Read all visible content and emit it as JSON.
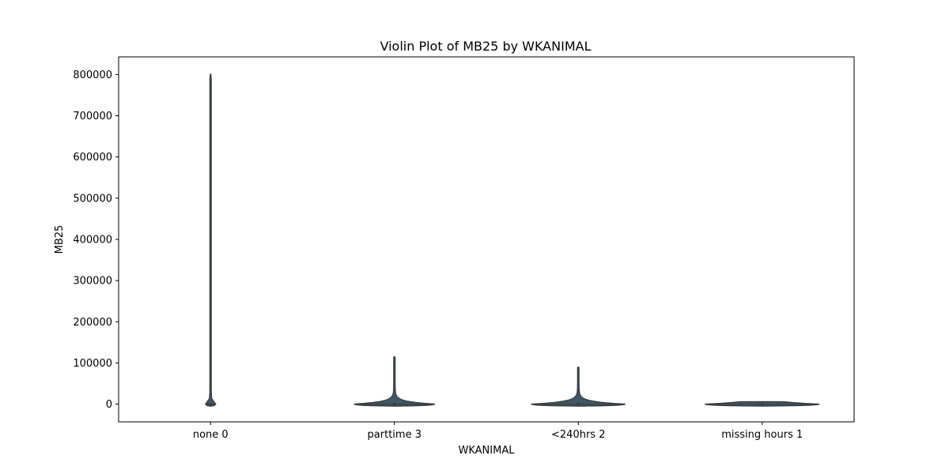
{
  "chart_data": {
    "type": "violin",
    "title": "Violin Plot of MB25 by WKANIMAL",
    "xlabel": "WKANIMAL",
    "ylabel": "MB25",
    "categories": [
      "none 0",
      "parttime 3",
      "<240hrs 2",
      "missing hours 1"
    ],
    "ylim": [
      -43000,
      843000
    ],
    "yticks": [
      0,
      100000,
      200000,
      300000,
      400000,
      500000,
      600000,
      700000,
      800000
    ],
    "ytick_labels": [
      "0",
      "100000",
      "200000",
      "300000",
      "400000",
      "500000",
      "600000",
      "700000",
      "800000"
    ],
    "grid": false,
    "legend": "none",
    "colors": {
      "violin_fill": "#3f5868",
      "violin_edge": "#3a3a3a",
      "axis": "#000000"
    },
    "violins": [
      {
        "category": "none 0",
        "min": 0,
        "max": 801000,
        "half_width_frac": 0.06
      },
      {
        "category": "parttime 3",
        "min": 0,
        "max": 115000,
        "half_width_frac": 0.54
      },
      {
        "category": "<240hrs 2",
        "min": 0,
        "max": 90000,
        "half_width_frac": 0.63
      },
      {
        "category": "missing hours 1",
        "min": 0,
        "max": 6000,
        "half_width_frac": 0.77
      }
    ]
  }
}
